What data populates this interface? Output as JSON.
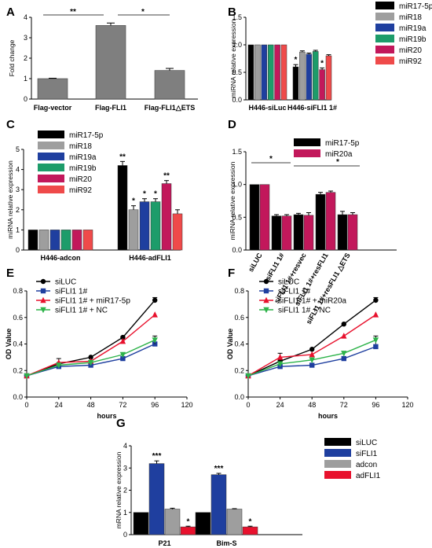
{
  "chart_data": [
    {
      "panel": "A",
      "type": "bar",
      "ylabel": "Fold change",
      "categories": [
        "Flag-vector",
        "Flag-FLI1",
        "Flag-FLI1△ETS"
      ],
      "values": [
        1.0,
        3.6,
        1.4
      ],
      "errors": [
        0.02,
        0.12,
        0.1
      ],
      "color": "#7f7f7f",
      "ylim": [
        0,
        4
      ],
      "yticks": [
        "0",
        "1",
        "2",
        "3",
        "4"
      ],
      "significance": [
        {
          "from": 0,
          "to": 1,
          "label": "**"
        },
        {
          "from": 1,
          "to": 2,
          "label": "*"
        }
      ]
    },
    {
      "panel": "B",
      "type": "bar",
      "ylabel": "miRNA relative expression",
      "categories": [
        "H446-siLuc",
        "H446-siFLI1 1#"
      ],
      "series": [
        {
          "name": "miR17-5p",
          "color": "#000000",
          "values": [
            1.0,
            0.6
          ],
          "errors": [
            0,
            0.04
          ],
          "marks": [
            "",
            "*"
          ]
        },
        {
          "name": "miR18",
          "color": "#9e9e9e",
          "values": [
            1.0,
            0.87
          ],
          "errors": [
            0,
            0.02
          ],
          "marks": [
            "",
            ""
          ]
        },
        {
          "name": "miR19a",
          "color": "#1f3f9f",
          "values": [
            1.0,
            0.83
          ],
          "errors": [
            0,
            0.02
          ],
          "marks": [
            "",
            ""
          ]
        },
        {
          "name": "miR19b",
          "color": "#1d9c6a",
          "values": [
            1.0,
            0.88
          ],
          "errors": [
            0,
            0.02
          ],
          "marks": [
            "",
            ""
          ]
        },
        {
          "name": "miR20",
          "color": "#c2185b",
          "values": [
            1.0,
            0.55
          ],
          "errors": [
            0,
            0.03
          ],
          "marks": [
            "",
            "*"
          ]
        },
        {
          "name": "miR92",
          "color": "#ef4a4a",
          "values": [
            1.0,
            0.8
          ],
          "errors": [
            0,
            0.02
          ],
          "marks": [
            "",
            ""
          ]
        }
      ],
      "ylim": [
        0,
        1.5
      ],
      "yticks": [
        "0.0",
        "0.5",
        "1.0",
        "1.5"
      ]
    },
    {
      "panel": "C",
      "type": "bar",
      "ylabel": "miRNA relative expression",
      "categories": [
        "H446-adcon",
        "H446-adFLI1"
      ],
      "series": [
        {
          "name": "miR17-5p",
          "color": "#000000",
          "values": [
            1.0,
            4.2
          ],
          "errors": [
            0,
            0.2
          ],
          "marks": [
            "",
            "**"
          ]
        },
        {
          "name": "miR18",
          "color": "#9e9e9e",
          "values": [
            1.0,
            2.0
          ],
          "errors": [
            0,
            0.2
          ],
          "marks": [
            "",
            "*"
          ]
        },
        {
          "name": "miR19a",
          "color": "#1f3f9f",
          "values": [
            1.0,
            2.4
          ],
          "errors": [
            0,
            0.15
          ],
          "marks": [
            "",
            "*"
          ]
        },
        {
          "name": "miR19b",
          "color": "#1d9c6a",
          "values": [
            1.0,
            2.4
          ],
          "errors": [
            0,
            0.15
          ],
          "marks": [
            "",
            "*"
          ]
        },
        {
          "name": "miR20",
          "color": "#c2185b",
          "values": [
            1.0,
            3.3
          ],
          "errors": [
            0,
            0.15
          ],
          "marks": [
            "",
            "**"
          ]
        },
        {
          "name": "miR92",
          "color": "#ef4a4a",
          "values": [
            1.0,
            1.8
          ],
          "errors": [
            0,
            0.2
          ],
          "marks": [
            "",
            ""
          ]
        }
      ],
      "ylim": [
        0,
        5
      ],
      "yticks": [
        "0",
        "1",
        "2",
        "3",
        "4",
        "5"
      ]
    },
    {
      "panel": "D",
      "type": "bar",
      "ylabel": "miRNA relative expression",
      "categories": [
        "siLUC",
        "siFLI1 1#",
        "siFLI1 1#+resvec",
        "siFLI1 1#+resFLI1",
        "siFLI1 1#+resFLI1 △ETS"
      ],
      "series": [
        {
          "name": "miR17-5p",
          "color": "#000000",
          "values": [
            1.0,
            0.52,
            0.54,
            0.85,
            0.54
          ],
          "errors": [
            0,
            0.02,
            0.02,
            0.03,
            0.05
          ]
        },
        {
          "name": "miR20a",
          "color": "#c2185b",
          "values": [
            1.0,
            0.52,
            0.53,
            0.88,
            0.54
          ],
          "errors": [
            0,
            0.02,
            0.04,
            0.02,
            0.03
          ]
        }
      ],
      "ylim": [
        0,
        1.5
      ],
      "yticks": [
        "0.0",
        "0.5",
        "1.0",
        "1.5"
      ],
      "significance": [
        {
          "from": 0,
          "to": 1,
          "label": "*"
        },
        {
          "from": 2,
          "to": 4,
          "label": "*"
        }
      ]
    },
    {
      "panel": "E",
      "type": "line",
      "xlabel": "hours",
      "ylabel": "OD Value",
      "x": [
        0,
        24,
        48,
        72,
        96
      ],
      "xlim": [
        0,
        120
      ],
      "xticks": [
        "0",
        "24",
        "48",
        "72",
        "96",
        "120"
      ],
      "ylim": [
        0,
        0.8
      ],
      "yticks": [
        "0.0",
        "0.2",
        "0.4",
        "0.6",
        "0.8"
      ],
      "series": [
        {
          "name": "siLUC",
          "color": "#000000",
          "marker": "circle",
          "values": [
            0.16,
            0.25,
            0.3,
            0.45,
            0.73
          ],
          "errors": [
            0.01,
            0.01,
            0.01,
            0.01,
            0.02
          ]
        },
        {
          "name": "siFLI1 1#",
          "color": "#1f3f9f",
          "marker": "square",
          "values": [
            0.16,
            0.23,
            0.24,
            0.29,
            0.4
          ],
          "errors": [
            0.01,
            0.01,
            0.01,
            0.01,
            0.01
          ]
        },
        {
          "name": "siFLI1 1# + miR17-5p",
          "color": "#e8112d",
          "marker": "triangle-up",
          "values": [
            0.16,
            0.26,
            0.27,
            0.42,
            0.62
          ],
          "errors": [
            0.01,
            0.03,
            0.01,
            0.01,
            0.01
          ]
        },
        {
          "name": "siFLI1 1# + NC",
          "color": "#2eb34a",
          "marker": "triangle-down",
          "values": [
            0.16,
            0.24,
            0.26,
            0.32,
            0.43
          ],
          "errors": [
            0.01,
            0.01,
            0.01,
            0.01,
            0.03
          ]
        }
      ]
    },
    {
      "panel": "F",
      "type": "line",
      "xlabel": "hours",
      "ylabel": "OD Value",
      "x": [
        0,
        24,
        48,
        72,
        96
      ],
      "xlim": [
        0,
        120
      ],
      "xticks": [
        "0",
        "24",
        "48",
        "72",
        "96",
        "120"
      ],
      "ylim": [
        0,
        0.8
      ],
      "yticks": [
        "0.0",
        "0.2",
        "0.4",
        "0.6",
        "0.8"
      ],
      "series": [
        {
          "name": "siLUC",
          "color": "#000000",
          "marker": "circle",
          "values": [
            0.16,
            0.27,
            0.36,
            0.55,
            0.73
          ],
          "errors": [
            0.01,
            0.01,
            0.01,
            0.01,
            0.02
          ]
        },
        {
          "name": "siFLI1 1#",
          "color": "#1f3f9f",
          "marker": "square",
          "values": [
            0.16,
            0.23,
            0.24,
            0.29,
            0.38
          ],
          "errors": [
            0.01,
            0.01,
            0.01,
            0.01,
            0.01
          ]
        },
        {
          "name": "siFLI1 1# + miR20a",
          "color": "#e8112d",
          "marker": "triangle-up",
          "values": [
            0.16,
            0.3,
            0.32,
            0.46,
            0.62
          ],
          "errors": [
            0.01,
            0.03,
            0.01,
            0.01,
            0.01
          ]
        },
        {
          "name": "siFLI1 1# + NC",
          "color": "#2eb34a",
          "marker": "triangle-down",
          "values": [
            0.16,
            0.25,
            0.28,
            0.33,
            0.43
          ],
          "errors": [
            0.01,
            0.01,
            0.01,
            0.01,
            0.03
          ]
        }
      ]
    },
    {
      "panel": "G",
      "type": "bar",
      "ylabel": "mRNA relative expression",
      "categories": [
        "P21",
        "Bim-S"
      ],
      "series": [
        {
          "name": "siLUC",
          "color": "#000000",
          "values": [
            1.0,
            1.0
          ],
          "errors": [
            0,
            0
          ],
          "marks": [
            "",
            ""
          ]
        },
        {
          "name": "siFLI1",
          "color": "#1f3f9f",
          "values": [
            3.2,
            2.7
          ],
          "errors": [
            0.12,
            0.06
          ],
          "marks": [
            "***",
            "***"
          ]
        },
        {
          "name": "adcon",
          "color": "#9e9e9e",
          "values": [
            1.15,
            1.15
          ],
          "errors": [
            0.04,
            0.02
          ],
          "marks": [
            "",
            ""
          ]
        },
        {
          "name": "adFLI1",
          "color": "#e8112d",
          "values": [
            0.35,
            0.35
          ],
          "errors": [
            0.03,
            0.03
          ],
          "marks": [
            "*",
            "*"
          ]
        }
      ],
      "ylim": [
        0,
        4
      ],
      "yticks": [
        "0",
        "1",
        "2",
        "3",
        "4"
      ]
    }
  ],
  "panel_labels": [
    "A",
    "B",
    "C",
    "D",
    "E",
    "F",
    "G"
  ]
}
